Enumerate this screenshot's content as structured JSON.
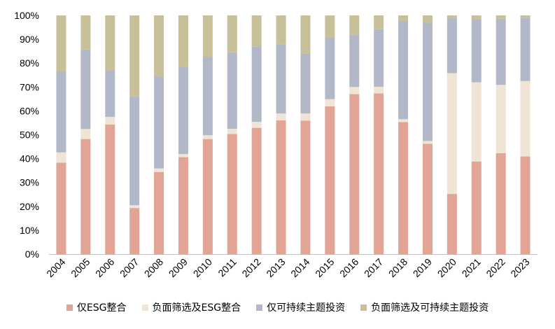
{
  "chart_data": {
    "type": "bar",
    "stacked": true,
    "categories": [
      "2004",
      "2005",
      "2006",
      "2007",
      "2008",
      "2009",
      "2010",
      "2011",
      "2012",
      "2013",
      "2014",
      "2015",
      "2016",
      "2017",
      "2018",
      "2019",
      "2020",
      "2021",
      "2022",
      "2023"
    ],
    "series": [
      {
        "name": "仅ESG整合",
        "color": "#e2a494",
        "values": [
          38.3,
          48.2,
          54.3,
          19.3,
          34.4,
          40.6,
          48.2,
          50.3,
          52.9,
          56.0,
          55.9,
          61.9,
          67.0,
          67.3,
          55.3,
          46.2,
          25.2,
          38.8,
          42.3,
          40.9
        ]
      },
      {
        "name": "负面筛选及ESG整合",
        "color": "#efe4d5",
        "values": [
          4.3,
          4.2,
          3.2,
          1.2,
          1.5,
          1.3,
          1.6,
          2.2,
          2.5,
          2.9,
          3.0,
          3.0,
          3.0,
          2.8,
          1.2,
          1.2,
          50.6,
          33.2,
          28.6,
          31.6
        ]
      },
      {
        "name": "仅可持续主题投资",
        "color": "#b3b8c9",
        "values": [
          33.8,
          33.3,
          19.5,
          45.7,
          38.3,
          36.6,
          32.9,
          32.0,
          31.6,
          29.0,
          25.0,
          25.7,
          22.0,
          24.1,
          41.0,
          49.5,
          23.2,
          26.5,
          27.7,
          26.4
        ]
      },
      {
        "name": "负面筛选及可持续主题投资",
        "color": "#c8c099",
        "values": [
          23.6,
          14.3,
          23.0,
          33.8,
          25.8,
          21.5,
          17.3,
          15.5,
          13.0,
          12.1,
          16.1,
          9.4,
          8.0,
          5.8,
          2.5,
          3.1,
          1.0,
          1.5,
          1.4,
          1.1
        ]
      }
    ],
    "yticks": [
      "0%",
      "10%",
      "20%",
      "30%",
      "40%",
      "50%",
      "60%",
      "70%",
      "80%",
      "90%",
      "100%"
    ],
    "ylim": [
      0,
      100
    ],
    "grid": false,
    "legend_position": "bottom"
  }
}
